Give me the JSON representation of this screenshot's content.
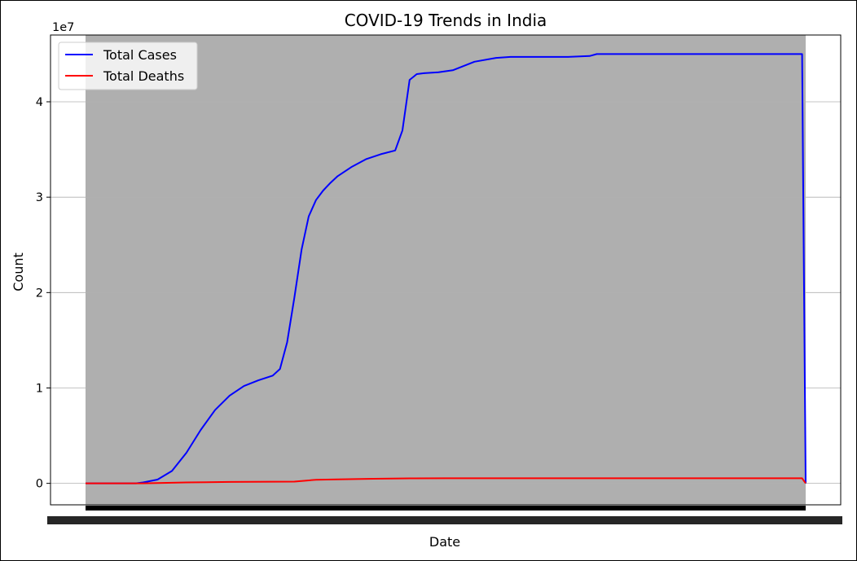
{
  "chart_data": {
    "type": "line",
    "title": "COVID-19 Trends in India",
    "xlabel": "Date",
    "ylabel": "Count",
    "y_offset_text": "1e7",
    "yticks": [
      0,
      1,
      2,
      3,
      4
    ],
    "ylim": [
      -2250000,
      47000000
    ],
    "x_tick_labels_legible": false,
    "grid": "horizontal",
    "legend_position": "upper-left",
    "plot_background": "#afafaf",
    "series": [
      {
        "name": "Total Cases",
        "color": "#0000ff",
        "x": [
          0,
          0.07,
          0.08,
          0.1,
          0.12,
          0.14,
          0.16,
          0.18,
          0.2,
          0.22,
          0.24,
          0.26,
          0.27,
          0.28,
          0.29,
          0.3,
          0.31,
          0.32,
          0.33,
          0.34,
          0.35,
          0.37,
          0.39,
          0.41,
          0.43,
          0.44,
          0.45,
          0.46,
          0.47,
          0.49,
          0.51,
          0.54,
          0.57,
          0.59,
          0.61,
          0.64,
          0.67,
          0.7,
          0.71,
          0.72,
          0.73,
          0.75,
          0.8,
          0.85,
          0.9,
          0.95,
          0.995,
          1.0
        ],
        "values": [
          0,
          0,
          100000,
          400000,
          1300000,
          3200000,
          5600000,
          7700000,
          9200000,
          10200000,
          10800000,
          11300000,
          12000000,
          14800000,
          19500000,
          24500000,
          28000000,
          29700000,
          30700000,
          31500000,
          32200000,
          33200000,
          34000000,
          34500000,
          34900000,
          37000000,
          42300000,
          42900000,
          43000000,
          43100000,
          43300000,
          44200000,
          44600000,
          44700000,
          44700000,
          44700000,
          44700000,
          44800000,
          45000000,
          45000000,
          45000000,
          45000000,
          45000000,
          45000000,
          45000000,
          45000000,
          45000000,
          0
        ]
      },
      {
        "name": "Total Deaths",
        "color": "#ff0000",
        "x": [
          0,
          0.08,
          0.14,
          0.2,
          0.29,
          0.3,
          0.32,
          0.35,
          0.4,
          0.45,
          0.5,
          0.55,
          0.6,
          0.7,
          0.8,
          0.9,
          0.995,
          1.0
        ],
        "values": [
          0,
          0,
          100000,
          150000,
          180000,
          250000,
          380000,
          420000,
          480000,
          520000,
          530000,
          530000,
          532000,
          532000,
          532000,
          532000,
          532000,
          0
        ]
      }
    ]
  }
}
